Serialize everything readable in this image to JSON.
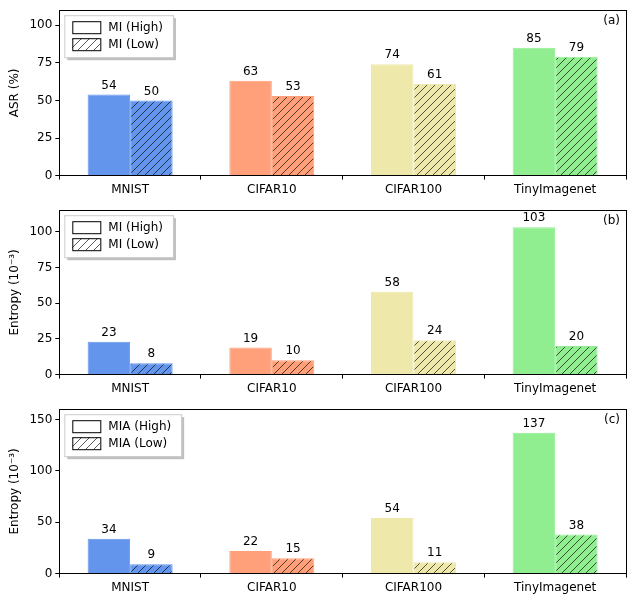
{
  "chart_data": [
    {
      "type": "bar",
      "y_label": "ASR (%)",
      "annotations": [
        "(a)"
      ],
      "categories": [
        "MNIST",
        "CIFAR10",
        "CIFAR100",
        "TinyImagenet"
      ],
      "colors": [
        "#6495ed",
        "#ffa07a",
        "#eee8aa",
        "#90ee90"
      ],
      "series": [
        {
          "name": "MI (High)",
          "values": [
            54,
            63,
            74,
            85
          ]
        },
        {
          "name": "MI (Low)",
          "values": [
            50,
            53,
            61,
            79
          ]
        }
      ],
      "ylim": [
        0,
        110
      ],
      "yticks": [
        0,
        25,
        50,
        75,
        100
      ],
      "grid": false,
      "legend": "upper left",
      "data_labels": true
    },
    {
      "type": "bar",
      "y_label": "Entropy (10⁻³)",
      "annotations": [
        "(b)"
      ],
      "categories": [
        "MNIST",
        "CIFAR10",
        "CIFAR100",
        "TinyImagenet"
      ],
      "colors": [
        "#6495ed",
        "#ffa07a",
        "#eee8aa",
        "#90ee90"
      ],
      "series": [
        {
          "name": "MI (High)",
          "values": [
            23,
            19,
            58,
            103
          ]
        },
        {
          "name": "MI (Low)",
          "values": [
            8,
            10,
            24,
            20
          ]
        }
      ],
      "ylim": [
        0,
        115
      ],
      "yticks": [
        0,
        25,
        50,
        75,
        100
      ],
      "grid": false,
      "legend": "upper left",
      "data_labels": true
    },
    {
      "type": "bar",
      "y_label": "Entropy (10⁻³)",
      "annotations": [
        "(c)"
      ],
      "categories": [
        "MNIST",
        "CIFAR10",
        "CIFAR100",
        "TinyImagenet"
      ],
      "colors": [
        "#6495ed",
        "#ffa07a",
        "#eee8aa",
        "#90ee90"
      ],
      "series": [
        {
          "name": "MIA (High)",
          "values": [
            34,
            22,
            54,
            137
          ]
        },
        {
          "name": "MIA (Low)",
          "values": [
            9,
            15,
            11,
            38
          ]
        }
      ],
      "ylim": [
        0,
        160
      ],
      "yticks": [
        0,
        50,
        100,
        150
      ],
      "grid": false,
      "legend": "upper left",
      "data_labels": true
    }
  ]
}
